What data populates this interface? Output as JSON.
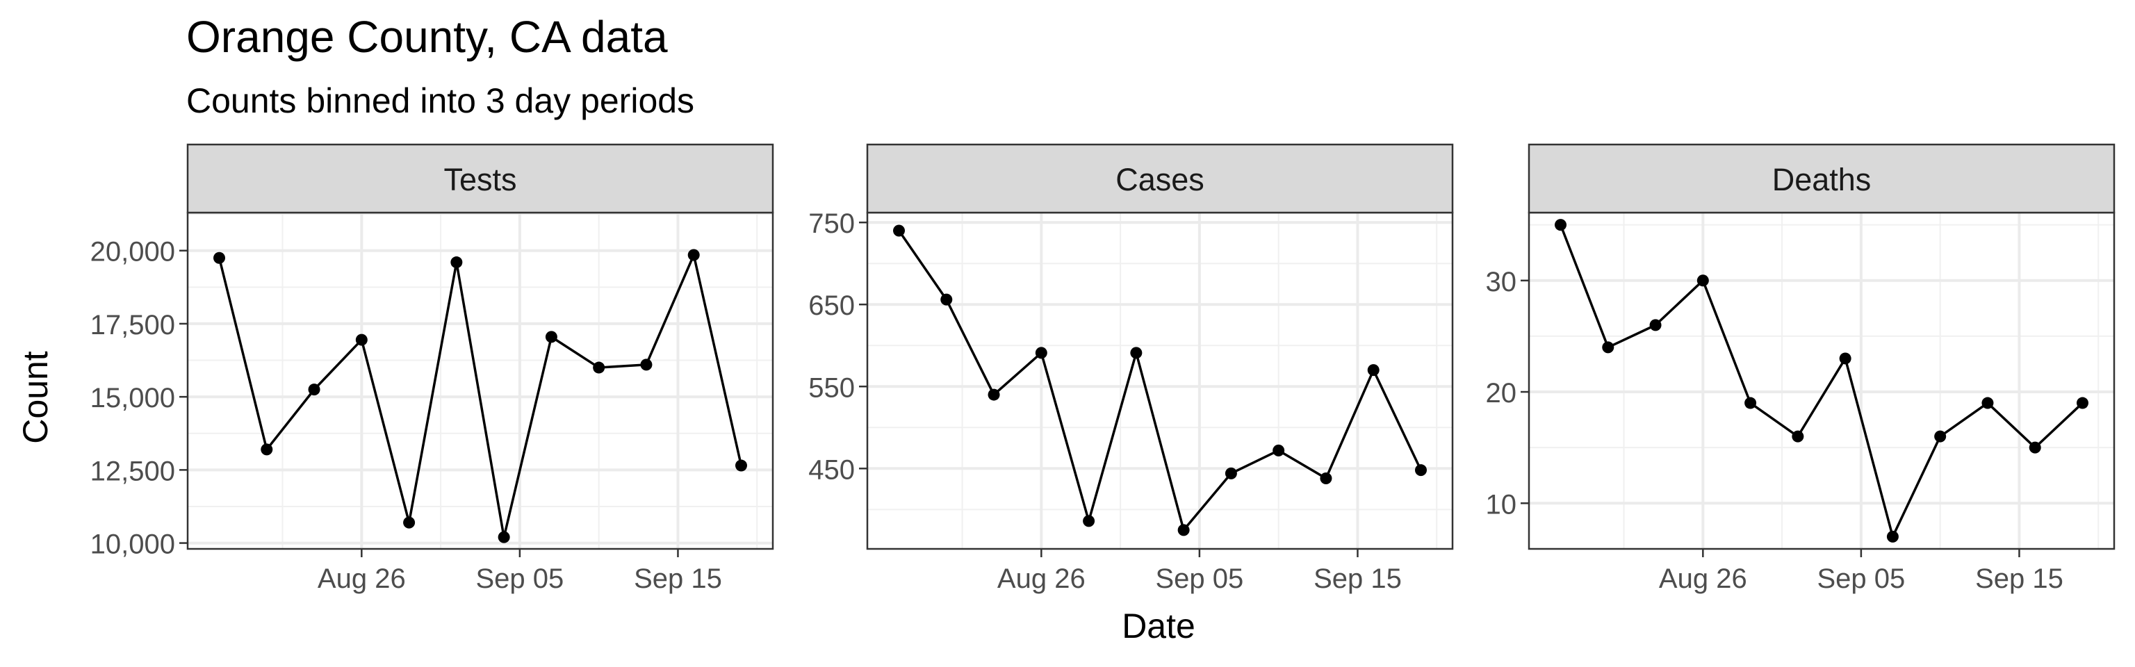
{
  "title": "Orange County, CA data",
  "subtitle": "Counts binned into 3 day periods",
  "chart_data": {
    "type": "line",
    "xlabel": "Date",
    "ylabel": "Count",
    "x_ticks": [
      "2020-08-26",
      "2020-09-05",
      "2020-09-15"
    ],
    "x_tick_labels": [
      "Aug 26",
      "Sep 05",
      "Sep 15"
    ],
    "x": [
      "2020-08-17",
      "2020-08-20",
      "2020-08-23",
      "2020-08-26",
      "2020-08-29",
      "2020-09-01",
      "2020-09-04",
      "2020-09-07",
      "2020-09-10",
      "2020-09-13",
      "2020-09-16",
      "2020-09-19"
    ],
    "xlim": [
      "2020-08-15",
      "2020-09-21"
    ],
    "grid": true,
    "legend": "none",
    "line_color": "#000000",
    "facets": [
      {
        "name": "Tests",
        "values": [
          19750,
          13200,
          15250,
          16950,
          10700,
          19600,
          10200,
          17050,
          16000,
          16100,
          19850,
          12650
        ],
        "ylim": [
          9800,
          21300
        ],
        "y_ticks": [
          10000,
          12500,
          15000,
          17500,
          20000
        ],
        "y_tick_labels": [
          "10,000",
          "12,500",
          "15,000",
          "17,500",
          "20,000"
        ]
      },
      {
        "name": "Cases",
        "values": [
          740,
          656,
          540,
          591,
          386,
          591,
          375,
          444,
          472,
          438,
          570,
          448
        ],
        "ylim": [
          352,
          762
        ],
        "y_ticks": [
          450,
          550,
          650,
          750
        ],
        "y_tick_labels": [
          "450",
          "550",
          "650",
          "750"
        ]
      },
      {
        "name": "Deaths",
        "values": [
          35,
          24,
          26,
          30,
          19,
          16,
          23,
          7,
          16,
          19,
          15,
          19
        ],
        "ylim": [
          5.9,
          36.1
        ],
        "y_ticks": [
          10,
          20,
          30
        ],
        "y_tick_labels": [
          "10",
          "20",
          "30"
        ]
      }
    ]
  }
}
